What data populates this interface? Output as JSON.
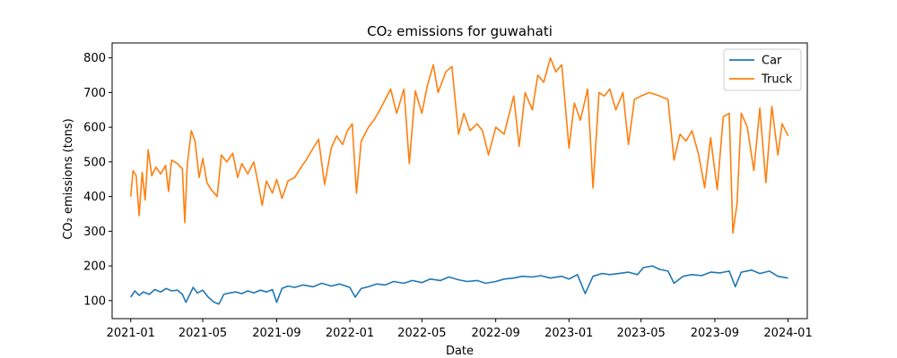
{
  "chart_data": {
    "type": "line",
    "title": "CO₂ emissions for guwahati",
    "xlabel": "Date",
    "ylabel": "CO₂ emissions (tons)",
    "xlim": [
      "2020-12-01",
      "2024-02-02"
    ],
    "ylim": [
      48,
      843
    ],
    "x_ticks": [
      "2021-01",
      "2021-05",
      "2021-09",
      "2022-01",
      "2022-05",
      "2022-09",
      "2023-01",
      "2023-05",
      "2023-09",
      "2024-01"
    ],
    "y_ticks": [
      100,
      200,
      300,
      400,
      500,
      600,
      700,
      800
    ],
    "legend_position": "top-right",
    "grid": false,
    "series": [
      {
        "name": "Car",
        "color": "#1f77b4",
        "points": [
          [
            "2021-01-01",
            110
          ],
          [
            "2021-01-08",
            128
          ],
          [
            "2021-01-15",
            115
          ],
          [
            "2021-01-22",
            125
          ],
          [
            "2021-02-01",
            118
          ],
          [
            "2021-02-10",
            132
          ],
          [
            "2021-02-20",
            125
          ],
          [
            "2021-03-01",
            135
          ],
          [
            "2021-03-10",
            128
          ],
          [
            "2021-03-20",
            130
          ],
          [
            "2021-03-28",
            118
          ],
          [
            "2021-04-03",
            95
          ],
          [
            "2021-04-10",
            120
          ],
          [
            "2021-04-15",
            138
          ],
          [
            "2021-04-22",
            122
          ],
          [
            "2021-05-01",
            130
          ],
          [
            "2021-05-10",
            110
          ],
          [
            "2021-05-20",
            95
          ],
          [
            "2021-05-28",
            90
          ],
          [
            "2021-06-05",
            118
          ],
          [
            "2021-06-15",
            122
          ],
          [
            "2021-06-25",
            125
          ],
          [
            "2021-07-05",
            120
          ],
          [
            "2021-07-15",
            128
          ],
          [
            "2021-07-25",
            122
          ],
          [
            "2021-08-05",
            130
          ],
          [
            "2021-08-15",
            125
          ],
          [
            "2021-08-25",
            132
          ],
          [
            "2021-09-01",
            95
          ],
          [
            "2021-09-10",
            135
          ],
          [
            "2021-09-20",
            142
          ],
          [
            "2021-10-01",
            138
          ],
          [
            "2021-10-15",
            145
          ],
          [
            "2021-11-01",
            140
          ],
          [
            "2021-11-15",
            150
          ],
          [
            "2021-12-01",
            142
          ],
          [
            "2021-12-15",
            148
          ],
          [
            "2022-01-01",
            138
          ],
          [
            "2022-01-10",
            110
          ],
          [
            "2022-01-20",
            135
          ],
          [
            "2022-02-01",
            140
          ],
          [
            "2022-02-15",
            148
          ],
          [
            "2022-03-01",
            145
          ],
          [
            "2022-03-15",
            155
          ],
          [
            "2022-04-01",
            150
          ],
          [
            "2022-04-15",
            158
          ],
          [
            "2022-05-01",
            152
          ],
          [
            "2022-05-15",
            162
          ],
          [
            "2022-06-01",
            158
          ],
          [
            "2022-06-15",
            168
          ],
          [
            "2022-07-01",
            160
          ],
          [
            "2022-07-15",
            155
          ],
          [
            "2022-08-01",
            158
          ],
          [
            "2022-08-15",
            150
          ],
          [
            "2022-09-01",
            155
          ],
          [
            "2022-09-15",
            162
          ],
          [
            "2022-10-01",
            165
          ],
          [
            "2022-10-15",
            170
          ],
          [
            "2022-11-01",
            168
          ],
          [
            "2022-11-15",
            172
          ],
          [
            "2022-12-01",
            165
          ],
          [
            "2022-12-20",
            170
          ],
          [
            "2023-01-01",
            162
          ],
          [
            "2023-01-15",
            175
          ],
          [
            "2023-01-28",
            120
          ],
          [
            "2023-02-10",
            170
          ],
          [
            "2023-02-25",
            178
          ],
          [
            "2023-03-10",
            175
          ],
          [
            "2023-03-25",
            178
          ],
          [
            "2023-04-10",
            182
          ],
          [
            "2023-04-25",
            175
          ],
          [
            "2023-05-05",
            195
          ],
          [
            "2023-05-20",
            200
          ],
          [
            "2023-06-01",
            190
          ],
          [
            "2023-06-15",
            185
          ],
          [
            "2023-06-25",
            150
          ],
          [
            "2023-07-10",
            170
          ],
          [
            "2023-07-25",
            175
          ],
          [
            "2023-08-10",
            172
          ],
          [
            "2023-08-25",
            182
          ],
          [
            "2023-09-10",
            180
          ],
          [
            "2023-09-25",
            185
          ],
          [
            "2023-10-05",
            140
          ],
          [
            "2023-10-15",
            182
          ],
          [
            "2023-11-01",
            188
          ],
          [
            "2023-11-15",
            178
          ],
          [
            "2023-12-01",
            185
          ],
          [
            "2023-12-15",
            170
          ],
          [
            "2024-01-01",
            165
          ]
        ]
      },
      {
        "name": "Truck",
        "color": "#ff7f0e",
        "points": [
          [
            "2021-01-01",
            400
          ],
          [
            "2021-01-05",
            475
          ],
          [
            "2021-01-10",
            460
          ],
          [
            "2021-01-15",
            345
          ],
          [
            "2021-01-20",
            470
          ],
          [
            "2021-01-25",
            390
          ],
          [
            "2021-01-30",
            535
          ],
          [
            "2021-02-05",
            460
          ],
          [
            "2021-02-12",
            485
          ],
          [
            "2021-02-20",
            465
          ],
          [
            "2021-02-28",
            490
          ],
          [
            "2021-03-05",
            415
          ],
          [
            "2021-03-10",
            505
          ],
          [
            "2021-03-20",
            495
          ],
          [
            "2021-03-28",
            480
          ],
          [
            "2021-04-01",
            325
          ],
          [
            "2021-04-05",
            490
          ],
          [
            "2021-04-12",
            590
          ],
          [
            "2021-04-18",
            560
          ],
          [
            "2021-04-25",
            455
          ],
          [
            "2021-05-01",
            510
          ],
          [
            "2021-05-08",
            440
          ],
          [
            "2021-05-15",
            420
          ],
          [
            "2021-05-25",
            400
          ],
          [
            "2021-06-01",
            520
          ],
          [
            "2021-06-10",
            500
          ],
          [
            "2021-06-20",
            525
          ],
          [
            "2021-06-28",
            455
          ],
          [
            "2021-07-05",
            495
          ],
          [
            "2021-07-15",
            465
          ],
          [
            "2021-07-25",
            500
          ],
          [
            "2021-08-01",
            440
          ],
          [
            "2021-08-08",
            375
          ],
          [
            "2021-08-15",
            445
          ],
          [
            "2021-08-25",
            410
          ],
          [
            "2021-09-01",
            450
          ],
          [
            "2021-09-10",
            395
          ],
          [
            "2021-09-20",
            445
          ],
          [
            "2021-10-01",
            455
          ],
          [
            "2021-10-10",
            480
          ],
          [
            "2021-10-20",
            505
          ],
          [
            "2021-11-01",
            540
          ],
          [
            "2021-11-10",
            565
          ],
          [
            "2021-11-20",
            435
          ],
          [
            "2021-12-01",
            540
          ],
          [
            "2021-12-10",
            575
          ],
          [
            "2021-12-20",
            550
          ],
          [
            "2021-12-28",
            590
          ],
          [
            "2022-01-05",
            610
          ],
          [
            "2022-01-12",
            410
          ],
          [
            "2022-01-20",
            560
          ],
          [
            "2022-02-01",
            600
          ],
          [
            "2022-02-10",
            620
          ],
          [
            "2022-02-20",
            650
          ],
          [
            "2022-03-01",
            680
          ],
          [
            "2022-03-10",
            710
          ],
          [
            "2022-03-20",
            640
          ],
          [
            "2022-04-01",
            710
          ],
          [
            "2022-04-10",
            495
          ],
          [
            "2022-04-20",
            705
          ],
          [
            "2022-05-01",
            640
          ],
          [
            "2022-05-10",
            720
          ],
          [
            "2022-05-20",
            780
          ],
          [
            "2022-05-28",
            700
          ],
          [
            "2022-06-10",
            760
          ],
          [
            "2022-06-20",
            775
          ],
          [
            "2022-07-01",
            580
          ],
          [
            "2022-07-10",
            640
          ],
          [
            "2022-07-20",
            590
          ],
          [
            "2022-08-01",
            610
          ],
          [
            "2022-08-10",
            590
          ],
          [
            "2022-08-20",
            520
          ],
          [
            "2022-09-01",
            600
          ],
          [
            "2022-09-15",
            580
          ],
          [
            "2022-10-01",
            690
          ],
          [
            "2022-10-10",
            545
          ],
          [
            "2022-10-20",
            700
          ],
          [
            "2022-11-01",
            650
          ],
          [
            "2022-11-10",
            750
          ],
          [
            "2022-11-20",
            730
          ],
          [
            "2022-12-01",
            800
          ],
          [
            "2022-12-10",
            760
          ],
          [
            "2022-12-20",
            780
          ],
          [
            "2023-01-01",
            540
          ],
          [
            "2023-01-10",
            670
          ],
          [
            "2023-01-20",
            620
          ],
          [
            "2023-02-01",
            710
          ],
          [
            "2023-02-10",
            425
          ],
          [
            "2023-02-20",
            700
          ],
          [
            "2023-03-01",
            690
          ],
          [
            "2023-03-10",
            710
          ],
          [
            "2023-03-20",
            650
          ],
          [
            "2023-04-01",
            700
          ],
          [
            "2023-04-10",
            550
          ],
          [
            "2023-04-20",
            680
          ],
          [
            "2023-05-01",
            690
          ],
          [
            "2023-05-15",
            700
          ],
          [
            "2023-06-01",
            690
          ],
          [
            "2023-06-15",
            680
          ],
          [
            "2023-06-25",
            505
          ],
          [
            "2023-07-05",
            580
          ],
          [
            "2023-07-15",
            560
          ],
          [
            "2023-07-25",
            590
          ],
          [
            "2023-08-05",
            520
          ],
          [
            "2023-08-15",
            425
          ],
          [
            "2023-08-25",
            570
          ],
          [
            "2023-09-05",
            420
          ],
          [
            "2023-09-15",
            630
          ],
          [
            "2023-09-25",
            640
          ],
          [
            "2023-10-01",
            295
          ],
          [
            "2023-10-08",
            380
          ],
          [
            "2023-10-15",
            640
          ],
          [
            "2023-10-25",
            600
          ],
          [
            "2023-11-05",
            475
          ],
          [
            "2023-11-15",
            655
          ],
          [
            "2023-11-25",
            440
          ],
          [
            "2023-12-05",
            660
          ],
          [
            "2023-12-15",
            520
          ],
          [
            "2023-12-22",
            610
          ],
          [
            "2024-01-01",
            575
          ]
        ]
      }
    ]
  }
}
